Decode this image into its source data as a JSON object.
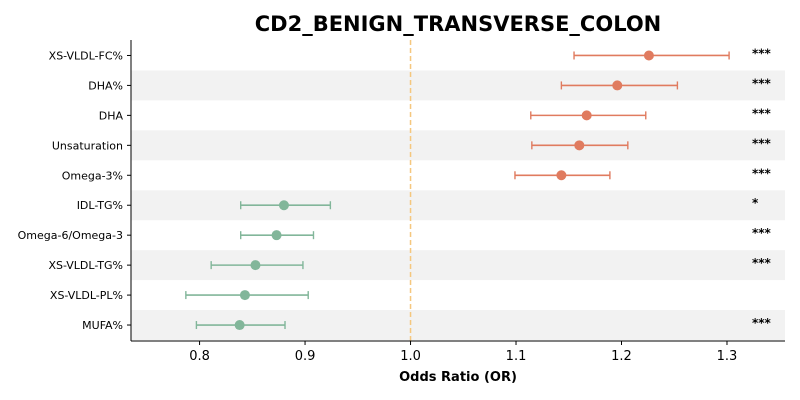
{
  "chart_data": {
    "type": "forest",
    "title": "CD2_BENIGN_TRANSVERSE_COLON",
    "xlabel": "Odds Ratio (OR)",
    "xlim": [
      0.735,
      1.355
    ],
    "xticks": [
      0.8,
      0.9,
      1.0,
      1.1,
      1.2,
      1.3
    ],
    "xtick_labels": [
      "0.8",
      "0.9",
      "1.0",
      "1.1",
      "1.2",
      "1.3"
    ],
    "reference_line": 1.0,
    "alternating_row_shading": true,
    "colors": {
      "risk": "#e07b5f",
      "protective": "#82b69a",
      "reference": "#f5c77e",
      "band": "#f2f2f2"
    },
    "rows": [
      {
        "label": "XS-VLDL-FC%",
        "or": 1.226,
        "ci": [
          1.155,
          1.302
        ],
        "sig": "***",
        "group": "risk"
      },
      {
        "label": "DHA%",
        "or": 1.196,
        "ci": [
          1.143,
          1.253
        ],
        "sig": "***",
        "group": "risk"
      },
      {
        "label": "DHA",
        "or": 1.167,
        "ci": [
          1.114,
          1.223
        ],
        "sig": "***",
        "group": "risk"
      },
      {
        "label": "Unsaturation",
        "or": 1.16,
        "ci": [
          1.115,
          1.206
        ],
        "sig": "***",
        "group": "risk"
      },
      {
        "label": "Omega-3%",
        "or": 1.143,
        "ci": [
          1.099,
          1.189
        ],
        "sig": "***",
        "group": "risk"
      },
      {
        "label": "IDL-TG%",
        "or": 0.88,
        "ci": [
          0.839,
          0.924
        ],
        "sig": "*",
        "group": "protective"
      },
      {
        "label": "Omega-6/Omega-3",
        "or": 0.873,
        "ci": [
          0.839,
          0.908
        ],
        "sig": "***",
        "group": "protective"
      },
      {
        "label": "XS-VLDL-TG%",
        "or": 0.853,
        "ci": [
          0.811,
          0.898
        ],
        "sig": "***",
        "group": "protective"
      },
      {
        "label": "XS-VLDL-PL%",
        "or": 0.843,
        "ci": [
          0.787,
          0.903
        ],
        "sig": "",
        "group": "protective"
      },
      {
        "label": "MUFA%",
        "or": 0.838,
        "ci": [
          0.797,
          0.881
        ],
        "sig": "***",
        "group": "protective"
      }
    ]
  }
}
